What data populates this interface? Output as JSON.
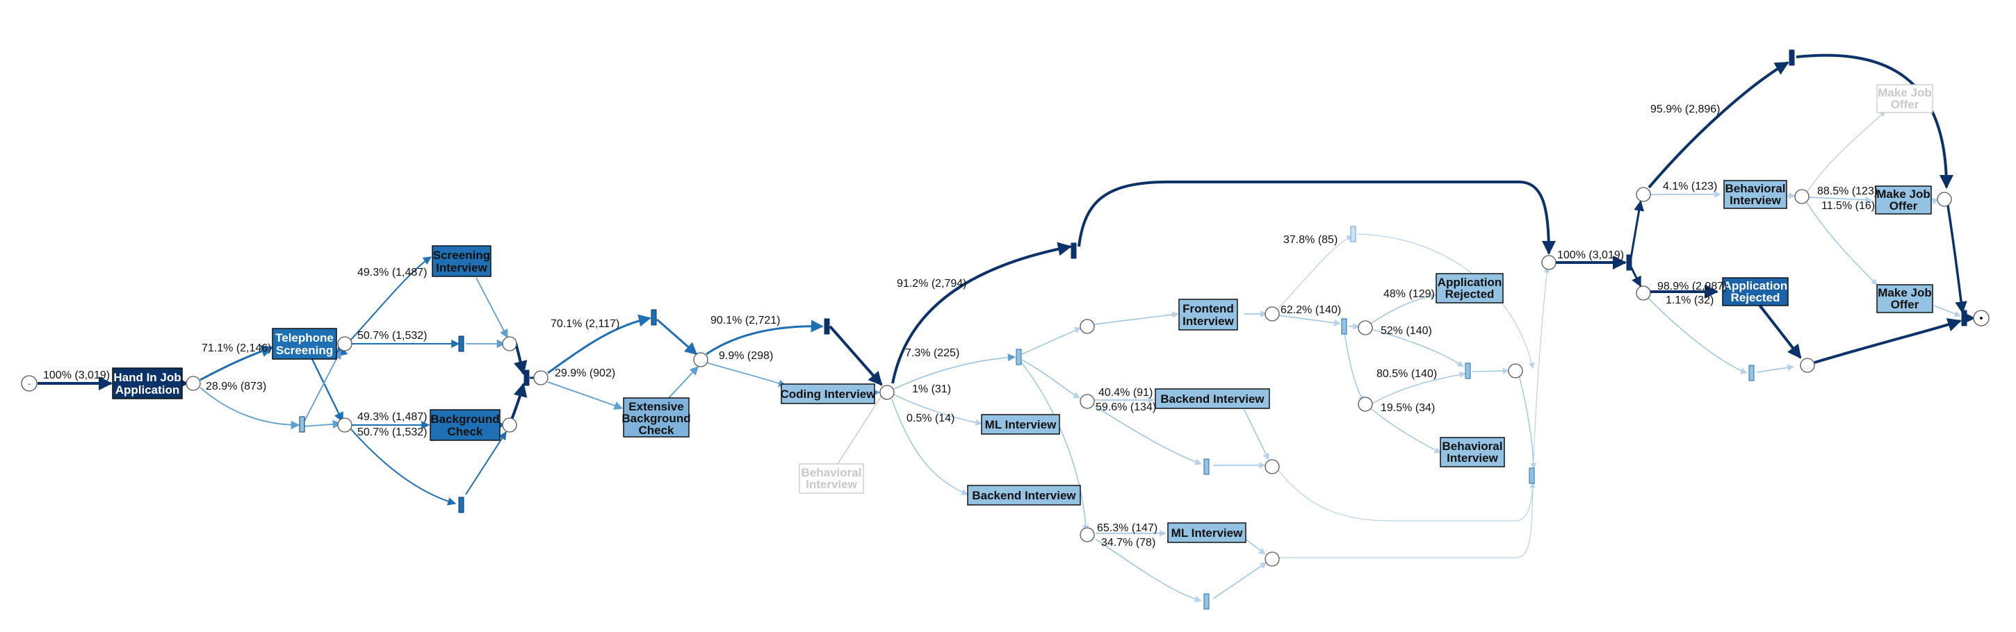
{
  "diagram": {
    "type": "petri-net",
    "start_marker": "·",
    "colors": {
      "dark": "#0b3269",
      "medium": "#1f6fb4",
      "light": "#94c2e3",
      "faded_edge": "#b7d2ea",
      "faded_label": "#c8c8c8",
      "white": "#ffffff",
      "black": "#111111"
    },
    "activities": [
      {
        "key": "hand_in",
        "lines": [
          "Hand In Job",
          "Application"
        ],
        "tone": "dark"
      },
      {
        "key": "telephone",
        "lines": [
          "Telephone",
          "Screening"
        ],
        "tone": "medium"
      },
      {
        "key": "screening_interview",
        "lines": [
          "Screening",
          "Interview"
        ],
        "tone": "light"
      },
      {
        "key": "background_check",
        "lines": [
          "Background",
          "Check"
        ],
        "tone": "medium"
      },
      {
        "key": "extensive_bg",
        "lines": [
          "Extensive",
          "Background",
          "Check"
        ],
        "tone": "light"
      },
      {
        "key": "coding",
        "lines": [
          "Coding Interview"
        ],
        "tone": "light"
      },
      {
        "key": "behavioral_faded",
        "lines": [
          "Behavioral",
          "Interview"
        ],
        "tone": "faded"
      },
      {
        "key": "ml_interview_1",
        "lines": [
          "ML Interview"
        ],
        "tone": "light"
      },
      {
        "key": "backend_interview_1",
        "lines": [
          "Backend Interview"
        ],
        "tone": "light"
      },
      {
        "key": "frontend",
        "lines": [
          "Frontend",
          "Interview"
        ],
        "tone": "light"
      },
      {
        "key": "backend_interview_2",
        "lines": [
          "Backend Interview"
        ],
        "tone": "light"
      },
      {
        "key": "ml_interview_2",
        "lines": [
          "ML Interview"
        ],
        "tone": "light"
      },
      {
        "key": "app_rejected_1",
        "lines": [
          "Application",
          "Rejected"
        ],
        "tone": "light"
      },
      {
        "key": "behavioral_2",
        "lines": [
          "Behavioral",
          "Interview"
        ],
        "tone": "light"
      },
      {
        "key": "behavioral_3",
        "lines": [
          "Behavioral",
          "Interview"
        ],
        "tone": "light"
      },
      {
        "key": "make_offer_faded",
        "lines": [
          "Make Job",
          "Offer"
        ],
        "tone": "faded"
      },
      {
        "key": "make_offer_1",
        "lines": [
          "Make Job",
          "Offer"
        ],
        "tone": "light"
      },
      {
        "key": "make_offer_2",
        "lines": [
          "Make Job",
          "Offer"
        ],
        "tone": "light"
      },
      {
        "key": "app_rejected_2",
        "lines": [
          "Application",
          "Rejected"
        ],
        "tone": "medium"
      }
    ],
    "edge_labels": [
      "100% (3,019)",
      "71.1% (2,146)",
      "28.9% (873)",
      "49.3% (1,487)",
      "50.7% (1,532)",
      "49.3% (1,487)",
      "50.7% (1,532)",
      "70.1% (2,117)",
      "29.9% (902)",
      "90.1% (2,721)",
      "9.9% (298)",
      "91.2% (2,794)",
      "7.3% (225)",
      "1% (31)",
      "0.5% (14)",
      "62.2% (140)",
      "37.8% (85)",
      "40.4% (91)",
      "59.6% (134)",
      "65.3% (147)",
      "34.7% (78)",
      "48% (129)",
      "52% (140)",
      "80.5% (140)",
      "19.5% (34)",
      "100% (3,019)",
      "95.9% (2,896)",
      "4.1% (123)",
      "98.9% (2,987)",
      "1.1% (32)",
      "88.5% (123)",
      "11.5% (16)"
    ]
  }
}
